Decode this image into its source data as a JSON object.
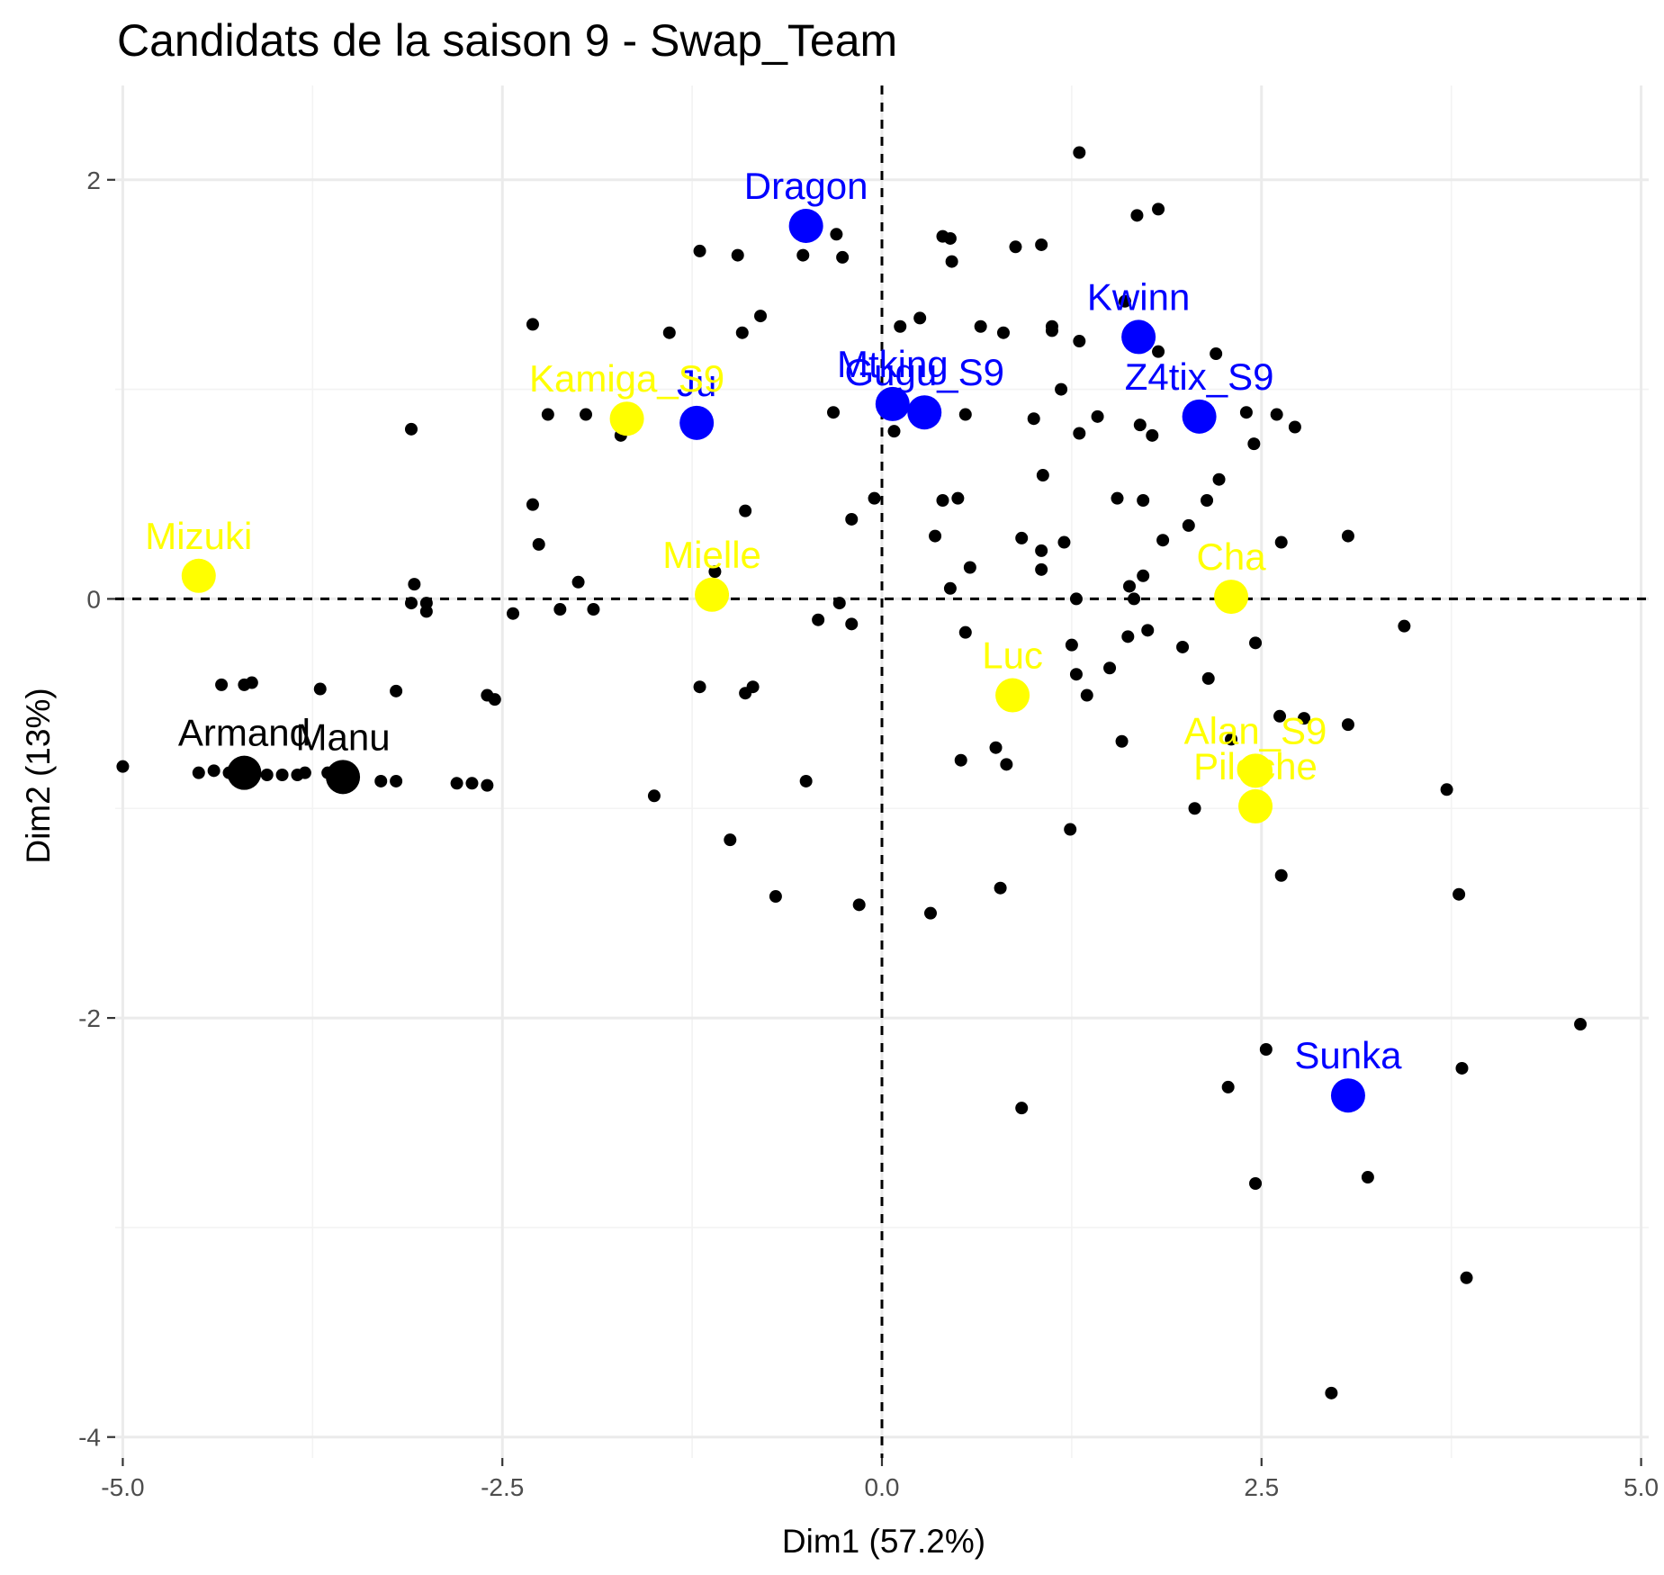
{
  "chart_data": {
    "type": "scatter",
    "title": "Candidats de la saison 9 - Swap_Team",
    "xlabel": "Dim1 (57.2%)",
    "ylabel": "Dim2 (13%)",
    "xlim": [
      -5.05,
      5.05
    ],
    "ylim": [
      -4.1,
      2.45
    ],
    "x_ticks": [
      -5.0,
      -2.5,
      0.0,
      2.5,
      5.0
    ],
    "x_tick_labels": [
      "-5.0",
      "-2.5",
      "0.0",
      "2.5",
      "5.0"
    ],
    "y_ticks": [
      -4,
      -2,
      0,
      2
    ],
    "y_tick_labels": [
      "-4",
      "-2",
      "0",
      "2"
    ],
    "reference_lines": {
      "x": 0,
      "y": 0
    },
    "grid": true,
    "colors": {
      "highlight_blue": "#0000ff",
      "highlight_yellow": "#ffff00",
      "highlight_black": "#000000",
      "other": "#000000"
    },
    "highlighted": [
      {
        "label": "Dragon",
        "x": -0.5,
        "y": 1.78,
        "color": "#0000ff"
      },
      {
        "label": "Kwinn",
        "x": 1.69,
        "y": 1.25,
        "color": "#0000ff"
      },
      {
        "label": "Ju",
        "x": -1.22,
        "y": 0.84,
        "color": "#0000ff"
      },
      {
        "label": "Mtking",
        "x": 0.07,
        "y": 0.93,
        "color": "#0000ff"
      },
      {
        "label": "Gugu_S9",
        "x": 0.28,
        "y": 0.89,
        "color": "#0000ff"
      },
      {
        "label": "Z4tix_S9",
        "x": 2.09,
        "y": 0.87,
        "color": "#0000ff"
      },
      {
        "label": "Sunka",
        "x": 3.07,
        "y": -2.37,
        "color": "#0000ff"
      },
      {
        "label": "Kamiga_S9",
        "x": -1.68,
        "y": 0.86,
        "color": "#ffff00"
      },
      {
        "label": "Mizuki",
        "x": -4.5,
        "y": 0.11,
        "color": "#ffff00"
      },
      {
        "label": "Mielle",
        "x": -1.12,
        "y": 0.02,
        "color": "#ffff00"
      },
      {
        "label": "Cha",
        "x": 2.3,
        "y": 0.01,
        "color": "#ffff00"
      },
      {
        "label": "Luc",
        "x": 0.86,
        "y": -0.46,
        "color": "#ffff00"
      },
      {
        "label": "Alan_S9",
        "x": 2.46,
        "y": -0.82,
        "color": "#ffff00"
      },
      {
        "label": "Piloche",
        "x": 2.46,
        "y": -0.99,
        "color": "#ffff00"
      },
      {
        "label": "Armand",
        "x": -4.2,
        "y": -0.83,
        "color": "#000000"
      },
      {
        "label": "Manu",
        "x": -3.55,
        "y": -0.85,
        "color": "#000000"
      }
    ],
    "others": [
      [
        -5.0,
        -0.8
      ],
      [
        -4.5,
        -0.83
      ],
      [
        -4.4,
        -0.82
      ],
      [
        -4.3,
        -0.83
      ],
      [
        -4.25,
        -0.84
      ],
      [
        -4.15,
        -0.82
      ],
      [
        -4.05,
        -0.84
      ],
      [
        -3.95,
        -0.84
      ],
      [
        -3.85,
        -0.84
      ],
      [
        -3.8,
        -0.83
      ],
      [
        -3.65,
        -0.83
      ],
      [
        -3.3,
        -0.87
      ],
      [
        -3.2,
        -0.87
      ],
      [
        -2.8,
        -0.88
      ],
      [
        -2.7,
        -0.88
      ],
      [
        -2.6,
        -0.89
      ],
      [
        -4.35,
        -0.41
      ],
      [
        -4.2,
        -0.41
      ],
      [
        -4.15,
        -0.4
      ],
      [
        -3.7,
        -0.43
      ],
      [
        -3.2,
        -0.44
      ],
      [
        -2.6,
        -0.46
      ],
      [
        -2.55,
        -0.48
      ],
      [
        -3.08,
        0.07
      ],
      [
        -3.1,
        -0.02
      ],
      [
        -3.0,
        -0.02
      ],
      [
        -3.0,
        -0.06
      ],
      [
        -2.43,
        -0.07
      ],
      [
        -2.12,
        -0.05
      ],
      [
        -1.9,
        -0.05
      ],
      [
        -2.0,
        0.08
      ],
      [
        -2.26,
        0.26
      ],
      [
        -2.3,
        0.45
      ],
      [
        -3.1,
        0.81
      ],
      [
        -2.2,
        0.88
      ],
      [
        -1.95,
        0.88
      ],
      [
        -1.72,
        0.78
      ],
      [
        -2.3,
        1.31
      ],
      [
        -1.4,
        1.27
      ],
      [
        -1.2,
        1.66
      ],
      [
        -0.95,
        1.64
      ],
      [
        -0.8,
        1.35
      ],
      [
        -0.92,
        1.27
      ],
      [
        -0.52,
        1.64
      ],
      [
        -0.3,
        1.74
      ],
      [
        -0.26,
        1.63
      ],
      [
        -0.32,
        0.89
      ],
      [
        -1.1,
        0.13
      ],
      [
        -1.05,
        0.02
      ],
      [
        -0.9,
        0.42
      ],
      [
        -0.9,
        -0.45
      ],
      [
        -0.85,
        -0.42
      ],
      [
        -1.2,
        -0.42
      ],
      [
        -1.5,
        -0.94
      ],
      [
        -1.0,
        -1.15
      ],
      [
        -0.7,
        -1.42
      ],
      [
        -0.5,
        -0.87
      ],
      [
        -0.42,
        -0.1
      ],
      [
        -0.28,
        -0.02
      ],
      [
        -0.2,
        -0.12
      ],
      [
        -0.2,
        0.38
      ],
      [
        -0.05,
        0.48
      ],
      [
        -0.15,
        -1.46
      ],
      [
        0.12,
        1.3
      ],
      [
        0.25,
        1.34
      ],
      [
        0.4,
        1.73
      ],
      [
        0.45,
        1.72
      ],
      [
        0.46,
        1.61
      ],
      [
        0.65,
        1.3
      ],
      [
        0.55,
        0.88
      ],
      [
        0.8,
        1.27
      ],
      [
        0.88,
        1.68
      ],
      [
        1.05,
        1.69
      ],
      [
        1.12,
        1.28
      ],
      [
        1.12,
        1.3
      ],
      [
        1.18,
        1.0
      ],
      [
        0.08,
        0.8
      ],
      [
        0.35,
        0.3
      ],
      [
        0.4,
        0.47
      ],
      [
        0.5,
        0.48
      ],
      [
        0.58,
        0.15
      ],
      [
        0.45,
        0.05
      ],
      [
        0.55,
        -0.16
      ],
      [
        1.05,
        0.23
      ],
      [
        1.05,
        0.14
      ],
      [
        1.2,
        0.27
      ],
      [
        0.92,
        0.29
      ],
      [
        1.0,
        0.86
      ],
      [
        1.06,
        0.59
      ],
      [
        1.3,
        0.79
      ],
      [
        1.42,
        0.87
      ],
      [
        1.3,
        1.23
      ],
      [
        1.6,
        1.42
      ],
      [
        1.68,
        1.83
      ],
      [
        1.82,
        1.86
      ],
      [
        1.3,
        2.13
      ],
      [
        1.82,
        1.18
      ],
      [
        1.7,
        0.83
      ],
      [
        1.78,
        0.78
      ],
      [
        2.2,
        1.17
      ],
      [
        2.4,
        0.89
      ],
      [
        2.6,
        0.88
      ],
      [
        2.45,
        0.74
      ],
      [
        2.72,
        0.82
      ],
      [
        2.22,
        0.57
      ],
      [
        2.14,
        0.47
      ],
      [
        1.55,
        0.48
      ],
      [
        1.72,
        0.47
      ],
      [
        1.85,
        0.28
      ],
      [
        2.02,
        0.35
      ],
      [
        1.72,
        0.11
      ],
      [
        1.63,
        0.06
      ],
      [
        1.66,
        0.0
      ],
      [
        1.28,
        -0.0
      ],
      [
        1.25,
        -0.22
      ],
      [
        1.28,
        -0.36
      ],
      [
        1.35,
        -0.46
      ],
      [
        1.5,
        -0.33
      ],
      [
        1.62,
        -0.18
      ],
      [
        1.75,
        -0.15
      ],
      [
        1.98,
        -0.23
      ],
      [
        2.15,
        -0.38
      ],
      [
        2.46,
        -0.21
      ],
      [
        2.62,
        -0.56
      ],
      [
        2.78,
        -0.57
      ],
      [
        3.07,
        -0.6
      ],
      [
        2.3,
        -0.67
      ],
      [
        1.58,
        -0.68
      ],
      [
        0.52,
        -0.77
      ],
      [
        0.75,
        -0.71
      ],
      [
        0.82,
        -0.79
      ],
      [
        1.24,
        -1.1
      ],
      [
        0.78,
        -1.38
      ],
      [
        0.32,
        -1.5
      ],
      [
        0.92,
        -2.43
      ],
      [
        2.06,
        -1.0
      ],
      [
        2.63,
        -1.32
      ],
      [
        2.53,
        -2.15
      ],
      [
        2.28,
        -2.33
      ],
      [
        2.46,
        -2.79
      ],
      [
        3.2,
        -2.76
      ],
      [
        2.96,
        -3.79
      ],
      [
        3.85,
        -3.24
      ],
      [
        3.82,
        -2.24
      ],
      [
        3.8,
        -1.41
      ],
      [
        3.72,
        -0.91
      ],
      [
        3.44,
        -0.13
      ],
      [
        3.07,
        0.3
      ],
      [
        2.63,
        0.27
      ],
      [
        4.6,
        -2.03
      ]
    ]
  }
}
